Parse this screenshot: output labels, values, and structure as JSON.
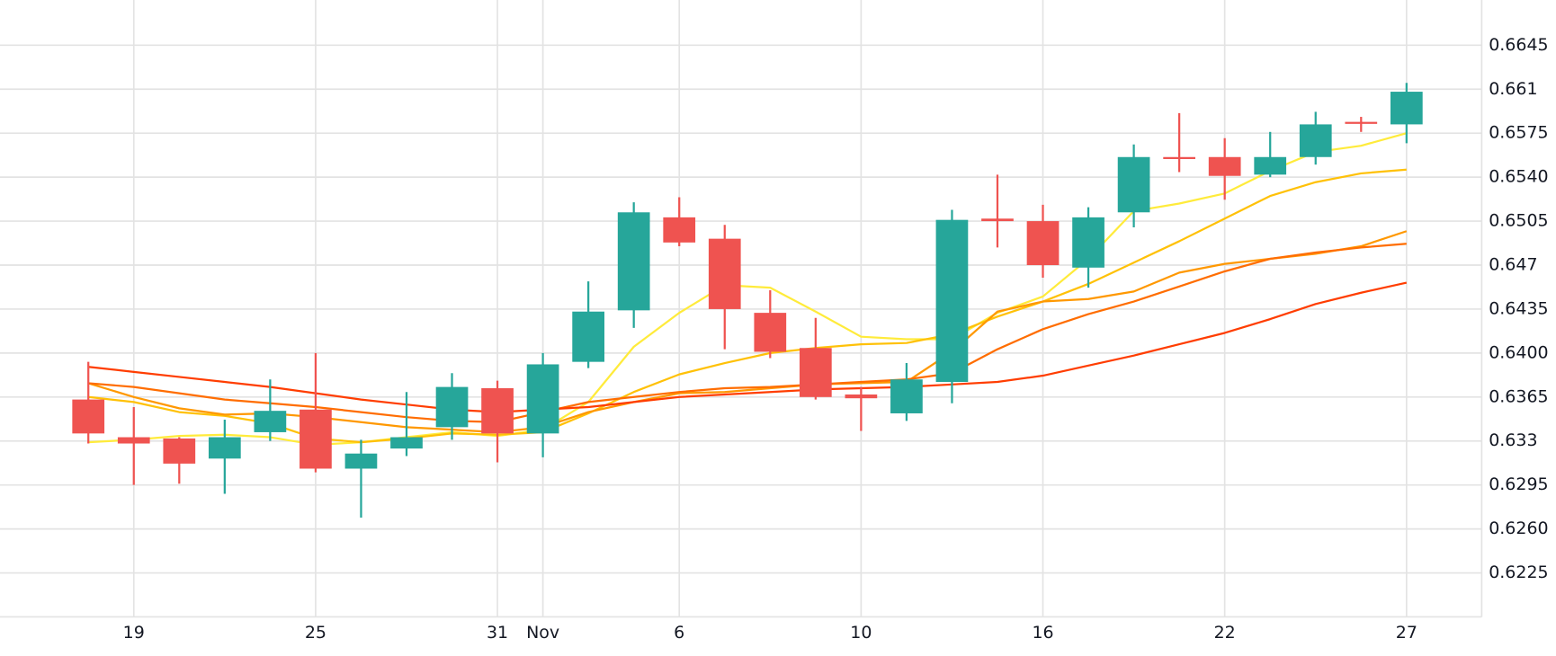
{
  "chart_data": {
    "type": "candlestick",
    "categories": [
      null,
      "19",
      null,
      null,
      null,
      "25",
      null,
      null,
      null,
      "31",
      "Nov",
      null,
      null,
      "6",
      null,
      null,
      null,
      "10",
      null,
      null,
      null,
      "16",
      null,
      null,
      null,
      "22",
      null,
      null,
      null,
      "27"
    ],
    "open": [
      0.6363,
      0.6333,
      0.6332,
      0.6316,
      0.6337,
      0.6355,
      0.6308,
      0.6324,
      0.6341,
      0.6372,
      0.6336,
      0.6393,
      0.6434,
      0.6508,
      0.6491,
      0.6432,
      0.6404,
      0.6367,
      0.6352,
      0.6377,
      0.6507,
      0.6505,
      0.6468,
      0.6512,
      0.6556,
      0.6556,
      0.6542,
      0.6556,
      0.6584,
      0.6582
    ],
    "high": [
      0.6393,
      0.6357,
      0.6333,
      0.6347,
      0.6379,
      0.64,
      0.6331,
      0.6369,
      0.6384,
      0.6378,
      0.64,
      0.6457,
      0.652,
      0.6524,
      0.6502,
      0.645,
      0.6428,
      0.6373,
      0.6392,
      0.6514,
      0.6542,
      0.6518,
      0.6516,
      0.6566,
      0.6591,
      0.6571,
      0.6576,
      0.6592,
      0.6588,
      0.6615
    ],
    "low": [
      0.6328,
      0.6295,
      0.6296,
      0.6288,
      0.633,
      0.6305,
      0.6269,
      0.6318,
      0.6331,
      0.6313,
      0.6317,
      0.6388,
      0.642,
      0.6485,
      0.6403,
      0.6396,
      0.6363,
      0.6338,
      0.6346,
      0.636,
      0.6484,
      0.646,
      0.6452,
      0.65,
      0.6544,
      0.6522,
      0.654,
      0.655,
      0.6576,
      0.6567
    ],
    "close": [
      0.6336,
      0.6328,
      0.6312,
      0.6333,
      0.6354,
      0.6308,
      0.632,
      0.6333,
      0.6373,
      0.6336,
      0.6391,
      0.6433,
      0.6512,
      0.6488,
      0.6435,
      0.6401,
      0.6365,
      0.6364,
      0.6379,
      0.6506,
      0.6505,
      0.647,
      0.6508,
      0.6556,
      0.6555,
      0.6541,
      0.6556,
      0.6582,
      0.6583,
      0.6608
    ],
    "up_color": "#26a69a",
    "down_color": "#ef5350",
    "lines": [
      {
        "color": "#ffeb3b",
        "values": [
          0.6329,
          0.6331,
          0.6334,
          0.6335,
          0.6333,
          0.6327,
          0.6329,
          0.6333,
          0.6337,
          0.6334,
          0.6339,
          0.6361,
          0.6405,
          0.6432,
          0.6454,
          0.6452,
          0.6433,
          0.6413,
          0.6411,
          0.6411,
          0.6432,
          0.6445,
          0.6475,
          0.6513,
          0.6519,
          0.6527,
          0.6545,
          0.656,
          0.6565,
          0.6575
        ]
      },
      {
        "color": "#ffc107",
        "values": [
          0.6365,
          0.6361,
          0.6353,
          0.635,
          0.6344,
          0.6332,
          0.6329,
          0.6332,
          0.6336,
          0.6335,
          0.6337,
          0.6352,
          0.6369,
          0.6383,
          0.6392,
          0.64,
          0.6404,
          0.6407,
          0.6408,
          0.6415,
          0.6429,
          0.6441,
          0.6455,
          0.6472,
          0.6489,
          0.6507,
          0.6525,
          0.6536,
          0.6543,
          0.6546
        ]
      },
      {
        "color": "#ff9800",
        "values": [
          0.6376,
          0.6365,
          0.6356,
          0.6351,
          0.6352,
          0.6349,
          0.6345,
          0.6341,
          0.6339,
          0.6337,
          0.6341,
          0.6353,
          0.6361,
          0.6368,
          0.6369,
          0.6372,
          0.6375,
          0.6376,
          0.6377,
          0.6401,
          0.6433,
          0.6441,
          0.6443,
          0.6449,
          0.6464,
          0.6471,
          0.6475,
          0.6479,
          0.6485,
          0.6497
        ]
      },
      {
        "color": "#ff6d00",
        "values": [
          0.6376,
          0.6373,
          0.6368,
          0.6363,
          0.636,
          0.6357,
          0.6353,
          0.6349,
          0.6346,
          0.6345,
          0.6353,
          0.6361,
          0.6365,
          0.6369,
          0.6372,
          0.6373,
          0.6375,
          0.6377,
          0.6379,
          0.6384,
          0.6403,
          0.6419,
          0.6431,
          0.6441,
          0.6453,
          0.6465,
          0.6475,
          0.648,
          0.6484,
          0.6487
        ]
      },
      {
        "color": "#ff3d00",
        "values": [
          0.6389,
          0.6385,
          0.6381,
          0.6377,
          0.6373,
          0.6368,
          0.6363,
          0.6359,
          0.6355,
          0.6353,
          0.6355,
          0.6357,
          0.6361,
          0.6365,
          0.6367,
          0.6369,
          0.6371,
          0.6372,
          0.6373,
          0.6375,
          0.6377,
          0.6382,
          0.639,
          0.6398,
          0.6407,
          0.6416,
          0.6427,
          0.6439,
          0.6448,
          0.6456
        ]
      }
    ],
    "ylim": [
      0.619,
      0.6681
    ],
    "yticks": [
      0.6225,
      {
        "value": 0.626,
        "label": "0.6260"
      },
      0.6295,
      0.633,
      0.6365,
      {
        "value": 0.64,
        "label": "0.6400"
      },
      0.6435,
      0.647,
      0.6505,
      {
        "value": 0.654,
        "label": "0.6540"
      },
      0.6575,
      0.661,
      0.6645
    ],
    "grid": true
  }
}
